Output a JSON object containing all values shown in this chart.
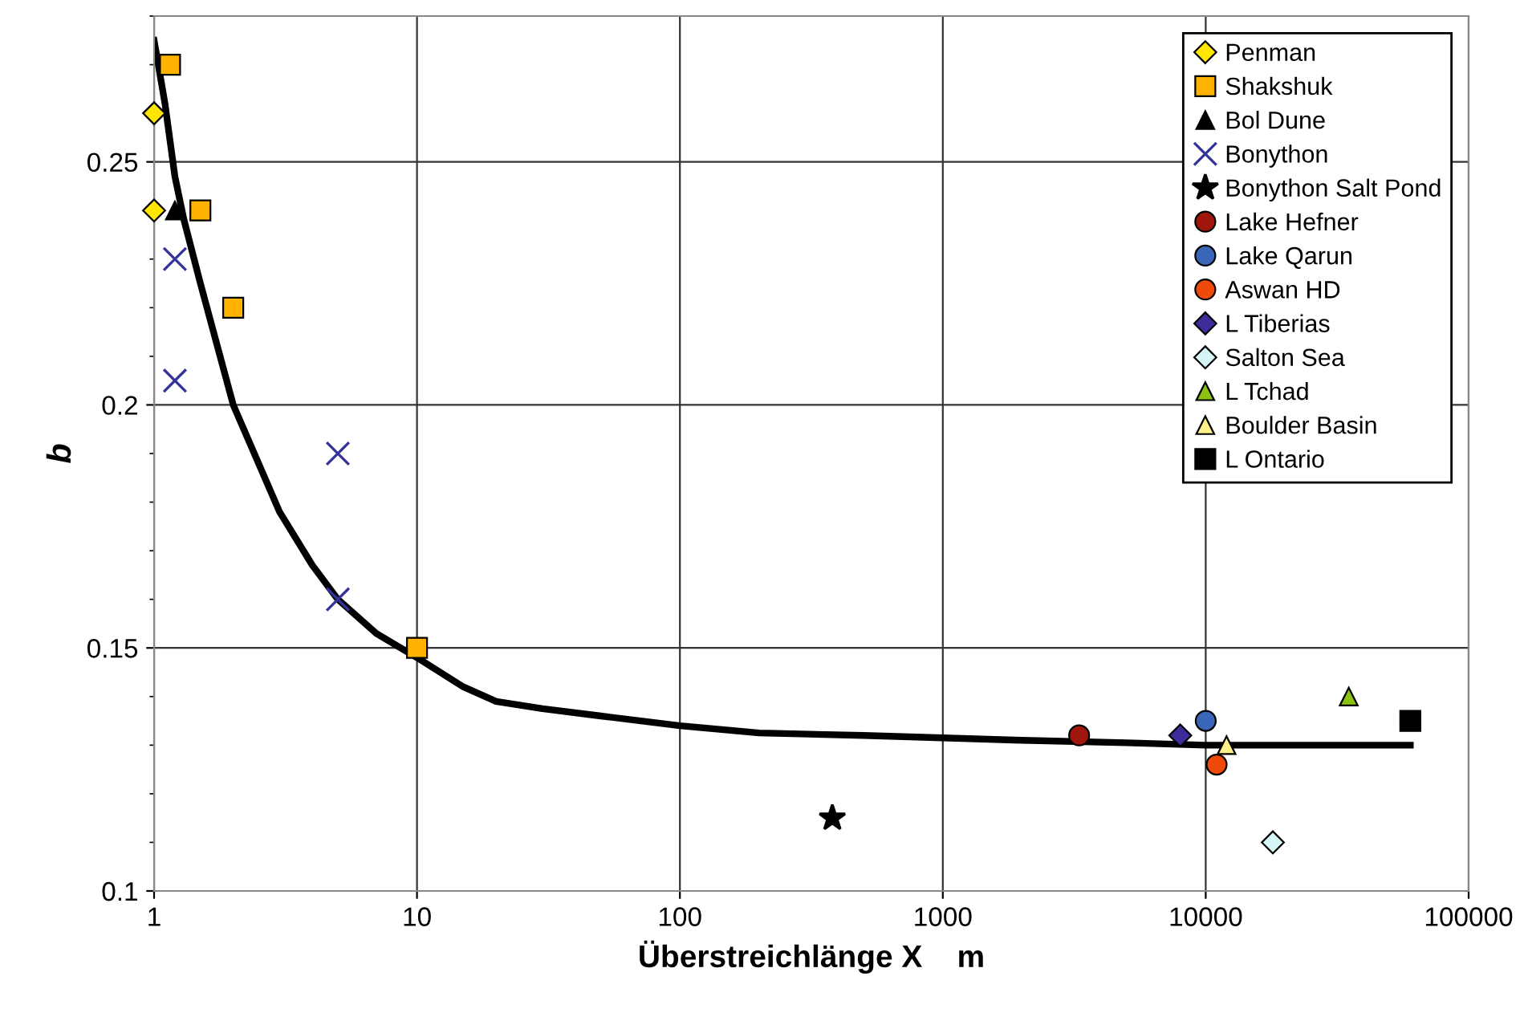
{
  "chart_data": {
    "type": "scatter",
    "xlabel": "Überstreichlänge X    m",
    "ylabel": "b",
    "log": "x",
    "xlim": [
      1,
      100000
    ],
    "ylim": [
      0.1,
      0.28
    ],
    "xticks": [
      1,
      10,
      100,
      1000,
      10000,
      100000
    ],
    "yticks": [
      0.1,
      {
        "value": 0.11,
        "label": null
      },
      {
        "value": 0.12,
        "label": null
      },
      {
        "value": 0.13,
        "label": null
      },
      {
        "value": 0.14,
        "label": null
      },
      0.15,
      {
        "value": 0.16,
        "label": null
      },
      {
        "value": 0.17,
        "label": null
      },
      {
        "value": 0.18,
        "label": null
      },
      {
        "value": 0.19,
        "label": null
      },
      0.2,
      {
        "value": 0.21,
        "label": null
      },
      {
        "value": 0.22,
        "label": null
      },
      {
        "value": 0.23,
        "label": null
      },
      {
        "value": 0.24,
        "label": null
      },
      0.25,
      {
        "value": 0.26,
        "label": null
      },
      {
        "value": 0.27,
        "label": null
      },
      {
        "value": 0.28,
        "label": null
      }
    ],
    "grid": true,
    "legend": "top right",
    "series": [
      {
        "name": "Penman",
        "color": "#ffe600",
        "marker": "diamond",
        "x": [
          1,
          1
        ],
        "values": [
          0.26,
          0.24
        ]
      },
      {
        "name": "Shakshuk",
        "color": "#ffb300",
        "marker": "square",
        "x": [
          1.15,
          1.5,
          2,
          10
        ],
        "values": [
          0.27,
          0.24,
          0.22,
          0.15
        ]
      },
      {
        "name": "Bol Dune",
        "color": "#000000",
        "marker": "triangle",
        "x": [
          1.2
        ],
        "values": [
          0.24
        ]
      },
      {
        "name": "Bonython",
        "color": "#333399",
        "marker": "cross",
        "x": [
          1.2,
          1.2,
          5,
          5
        ],
        "values": [
          0.23,
          0.205,
          0.19,
          0.16
        ]
      },
      {
        "name": "Bonython Salt Pond",
        "color": "#000000",
        "marker": "star",
        "x": [
          380
        ],
        "values": [
          0.115
        ]
      },
      {
        "name": "Lake Hefner",
        "color": "#a0160c",
        "marker": "circle",
        "x": [
          3300
        ],
        "values": [
          0.132
        ]
      },
      {
        "name": "Lake Qarun",
        "color": "#3a66b8",
        "marker": "circle",
        "x": [
          10000
        ],
        "values": [
          0.135
        ]
      },
      {
        "name": "Aswan HD",
        "color": "#f04a0a",
        "marker": "circle",
        "x": [
          11000
        ],
        "values": [
          0.126
        ]
      },
      {
        "name": "L Tiberias",
        "color": "#3c2d9a",
        "marker": "diamond",
        "x": [
          8000
        ],
        "values": [
          0.132
        ]
      },
      {
        "name": "Salton Sea",
        "color": "#d6f5f5",
        "marker": "diamond",
        "x": [
          18000
        ],
        "values": [
          0.11
        ]
      },
      {
        "name": "L Tchad",
        "color": "#8cc313",
        "marker": "triangle",
        "x": [
          35000
        ],
        "values": [
          0.14
        ]
      },
      {
        "name": "Boulder Basin",
        "color": "#fff08c",
        "marker": "triangle",
        "x": [
          12000
        ],
        "values": [
          0.13
        ]
      },
      {
        "name": "L Ontario",
        "color": "#000000",
        "marker": "square",
        "x": [
          60000
        ],
        "values": [
          0.135
        ]
      },
      {
        "type": "line",
        "color": "#000000",
        "marker": "none",
        "x": [
          1,
          1.1,
          1.2,
          1.3,
          1.5,
          2,
          3,
          4,
          5,
          7,
          10,
          15,
          20,
          30,
          50,
          100,
          200,
          500,
          1000,
          2000,
          5000,
          10000,
          20000,
          60000
        ],
        "values": [
          0.275,
          0.262,
          0.247,
          0.238,
          0.225,
          0.2,
          0.178,
          0.167,
          0.16,
          0.153,
          0.148,
          0.142,
          0.139,
          0.1375,
          0.136,
          0.134,
          0.1325,
          0.132,
          0.1315,
          0.131,
          0.1305,
          0.13,
          0.13,
          0.13
        ]
      }
    ]
  }
}
